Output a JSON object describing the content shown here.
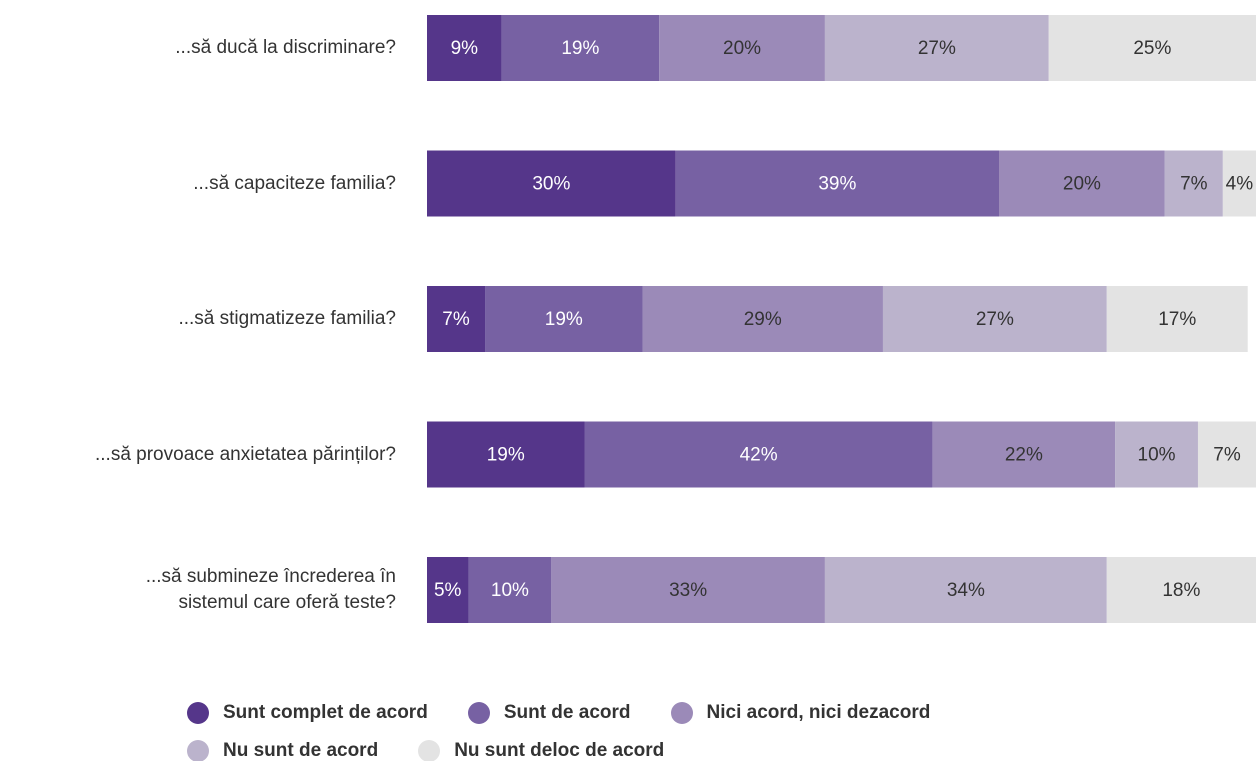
{
  "chart_data": {
    "type": "stacked_barh",
    "categories": [
      "...să ducă la discriminare?",
      "...să capaciteze familia?",
      "...să stigmatizeze familia?",
      "...să provoace anxietatea părinților?",
      "...să submineze încrederea în\nsistemul care oferă teste?"
    ],
    "xlim": [
      0,
      100
    ],
    "series": [
      {
        "name": "Sunt complet de acord",
        "color": "#55368a",
        "values": [
          9,
          30,
          7,
          19,
          5
        ],
        "value_labels": [
          "9%",
          "30%",
          "7%",
          "19%",
          "5%"
        ]
      },
      {
        "name": "Sunt de acord",
        "color": "#7761a3",
        "values": [
          19,
          39,
          19,
          42,
          10
        ],
        "value_labels": [
          "19%",
          "39%",
          "19%",
          "42%",
          "10%"
        ]
      },
      {
        "name": "Nici acord, nici dezacord",
        "color": "#9b8ab8",
        "values": [
          20,
          20,
          29,
          22,
          33
        ],
        "value_labels": [
          "20%",
          "20%",
          "29%",
          "22%",
          "33%"
        ]
      },
      {
        "name": "Nu sunt de acord",
        "color": "#bbb3cc",
        "values": [
          27,
          7,
          27,
          10,
          34
        ],
        "value_labels": [
          "27%",
          "7%",
          "27%",
          "10%",
          "34%"
        ]
      },
      {
        "name": "Nu sunt deloc de acord",
        "color": "#e3e3e3",
        "values": [
          25,
          4,
          17,
          7,
          18
        ],
        "value_labels": [
          "25%",
          "4%",
          "17%",
          "7%",
          "18%"
        ]
      }
    ]
  }
}
